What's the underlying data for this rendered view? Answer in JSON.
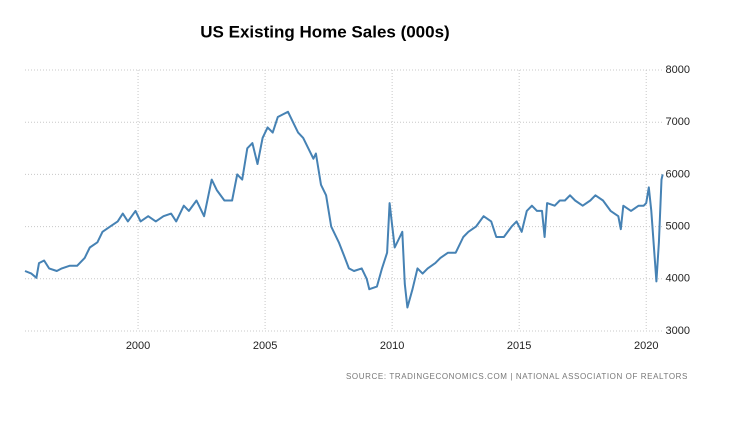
{
  "chart_data": {
    "type": "line",
    "title": "US Existing Home Sales (000s)",
    "source": "SOURCE: TRADINGECONOMICS.COM | NATIONAL ASSOCIATION OF REALTORS",
    "color": "#4682b4",
    "grid": true,
    "xlim": [
      1995.55,
      2020.7
    ],
    "xticks": [
      2000,
      2005,
      2010,
      2015,
      2020
    ],
    "ylim": [
      3000,
      8000
    ],
    "yticks": [
      3000,
      4000,
      5000,
      6000,
      7000,
      8000
    ],
    "x": [
      1995.55,
      1995.8,
      1996.0,
      1996.1,
      1996.3,
      1996.5,
      1996.8,
      1997.0,
      1997.3,
      1997.6,
      1997.9,
      1998.1,
      1998.4,
      1998.6,
      1998.9,
      1999.2,
      1999.4,
      1999.6,
      1999.9,
      2000.1,
      2000.4,
      2000.7,
      2001.0,
      2001.3,
      2001.5,
      2001.8,
      2002.0,
      2002.3,
      2002.6,
      2002.9,
      2003.1,
      2003.4,
      2003.7,
      2003.9,
      2004.1,
      2004.3,
      2004.5,
      2004.7,
      2004.9,
      2005.1,
      2005.3,
      2005.5,
      2005.7,
      2005.9,
      2006.1,
      2006.3,
      2006.5,
      2006.7,
      2006.9,
      2007.0,
      2007.2,
      2007.4,
      2007.6,
      2007.9,
      2008.1,
      2008.3,
      2008.5,
      2008.8,
      2009.0,
      2009.1,
      2009.4,
      2009.6,
      2009.8,
      2009.9,
      2010.1,
      2010.3,
      2010.4,
      2010.5,
      2010.6,
      2010.8,
      2011.0,
      2011.2,
      2011.4,
      2011.7,
      2011.9,
      2012.2,
      2012.5,
      2012.8,
      2013.0,
      2013.3,
      2013.6,
      2013.9,
      2014.1,
      2014.4,
      2014.7,
      2014.9,
      2015.1,
      2015.3,
      2015.5,
      2015.7,
      2015.9,
      2016.0,
      2016.1,
      2016.4,
      2016.6,
      2016.8,
      2017.0,
      2017.2,
      2017.5,
      2017.8,
      2018.0,
      2018.3,
      2018.6,
      2018.9,
      2019.0,
      2019.1,
      2019.4,
      2019.7,
      2019.9,
      2020.0,
      2020.1,
      2020.2,
      2020.4,
      2020.5,
      2020.6,
      2020.65
    ],
    "values": [
      4150,
      4100,
      4020,
      4300,
      4350,
      4200,
      4150,
      4200,
      4250,
      4250,
      4400,
      4600,
      4700,
      4900,
      5000,
      5100,
      5250,
      5100,
      5300,
      5100,
      5200,
      5100,
      5200,
      5250,
      5100,
      5400,
      5300,
      5500,
      5200,
      5900,
      5700,
      5500,
      5500,
      6000,
      5900,
      6500,
      6600,
      6200,
      6700,
      6900,
      6800,
      7100,
      7150,
      7200,
      7000,
      6800,
      6700,
      6500,
      6300,
      6400,
      5800,
      5600,
      5000,
      4700,
      4450,
      4200,
      4150,
      4200,
      4000,
      3800,
      3850,
      4200,
      4500,
      5450,
      4600,
      4800,
      4900,
      3900,
      3450,
      3800,
      4200,
      4100,
      4200,
      4300,
      4400,
      4500,
      4500,
      4800,
      4900,
      5000,
      5200,
      5100,
      4800,
      4800,
      5000,
      5100,
      4900,
      5300,
      5400,
      5300,
      5300,
      4800,
      5450,
      5400,
      5500,
      5500,
      5600,
      5500,
      5400,
      5500,
      5600,
      5500,
      5300,
      5200,
      4950,
      5400,
      5300,
      5400,
      5400,
      5450,
      5750,
      5300,
      3950,
      4700,
      5900,
      6000
    ]
  }
}
